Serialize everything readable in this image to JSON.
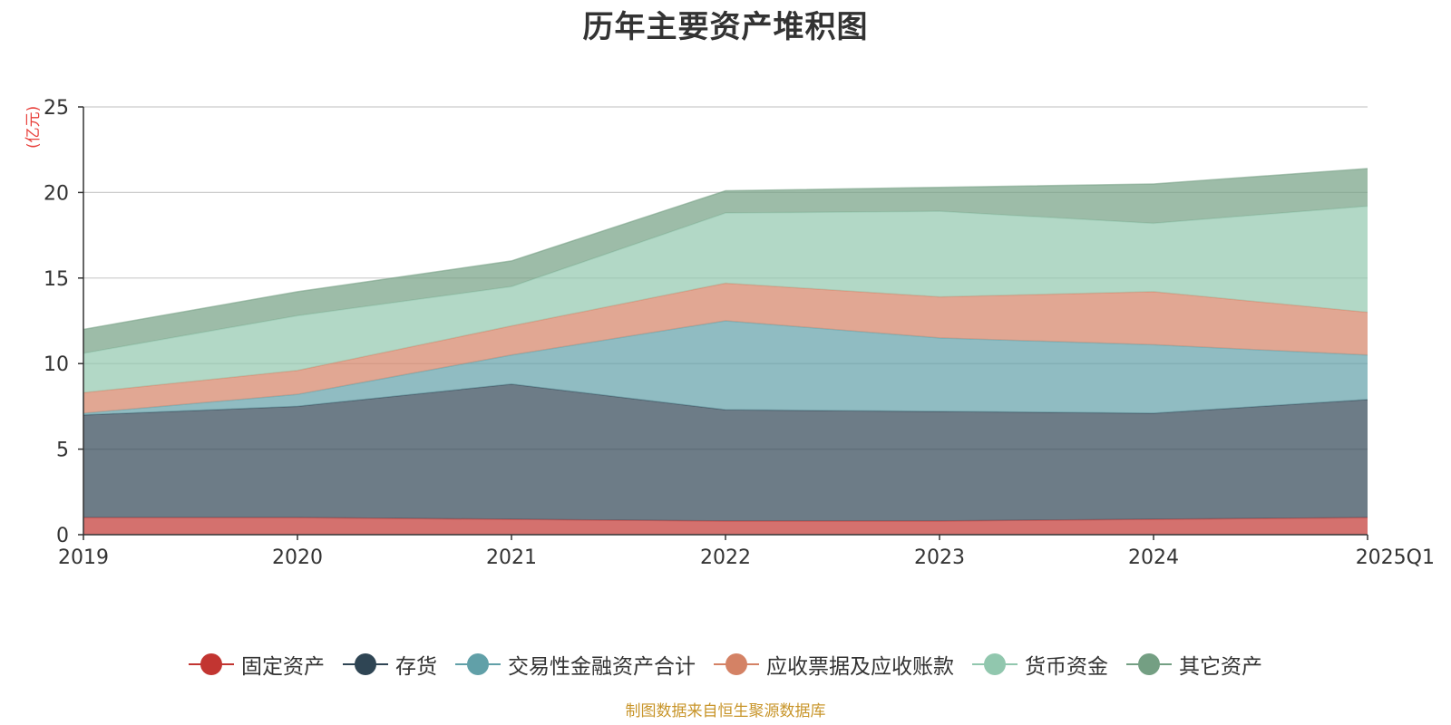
{
  "title": "历年主要资产堆积图",
  "unit_label": "(亿元)",
  "source_note": "制图数据来自恒生聚源数据库",
  "chart_data": {
    "type": "area",
    "stacked": true,
    "categories": [
      "2019",
      "2020",
      "2021",
      "2022",
      "2023",
      "2024",
      "2025Q1"
    ],
    "ylim": [
      0,
      25
    ],
    "yticks": [
      0,
      5,
      10,
      15,
      20,
      25
    ],
    "grid": true,
    "legend_position": "bottom",
    "series": [
      {
        "name": "固定资产",
        "color": "#c23531",
        "values": [
          1.0,
          1.0,
          0.9,
          0.8,
          0.8,
          0.9,
          1.0
        ]
      },
      {
        "name": "存货",
        "color": "#2f4554",
        "values": [
          6.0,
          6.5,
          7.9,
          6.5,
          6.4,
          6.2,
          6.9
        ]
      },
      {
        "name": "交易性金融资产合计",
        "color": "#61a0a8",
        "values": [
          0.1,
          0.7,
          1.7,
          5.2,
          4.3,
          4.0,
          2.6
        ]
      },
      {
        "name": "应收票据及应收账款",
        "color": "#d48265",
        "values": [
          1.2,
          1.4,
          1.7,
          2.2,
          2.4,
          3.1,
          2.5
        ]
      },
      {
        "name": "货币资金",
        "color": "#91c7ae",
        "values": [
          2.3,
          3.2,
          2.3,
          4.1,
          5.0,
          4.0,
          6.2
        ]
      },
      {
        "name": "其它资产",
        "color": "#749f83",
        "values": [
          1.4,
          1.4,
          1.5,
          1.3,
          1.4,
          2.3,
          2.2
        ]
      }
    ]
  }
}
